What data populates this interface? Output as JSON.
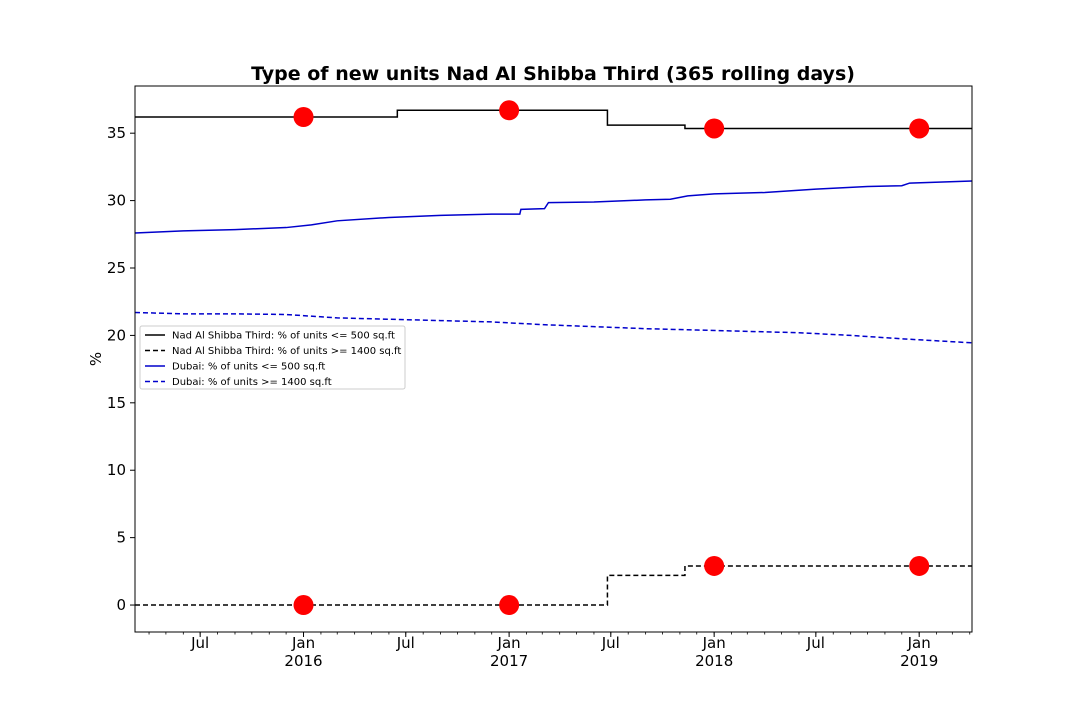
{
  "chart_data": {
    "type": "line",
    "title": "Type of new units Nad Al Shibba Third (365 rolling days)",
    "xlabel": "",
    "ylabel": "%",
    "xlim": [
      "2015-03-07",
      "2019-04-05"
    ],
    "ylim": [
      -2,
      38.5
    ],
    "grid": false,
    "legend_position": "center-left",
    "y_ticks": [
      0,
      5,
      10,
      15,
      20,
      25,
      30,
      35
    ],
    "x_major_ticks": [
      {
        "date": "2015-07-01",
        "label": "Jul",
        "sub": ""
      },
      {
        "date": "2016-01-01",
        "label": "Jan",
        "sub": "2016"
      },
      {
        "date": "2016-07-01",
        "label": "Jul",
        "sub": ""
      },
      {
        "date": "2017-01-01",
        "label": "Jan",
        "sub": "2017"
      },
      {
        "date": "2017-07-01",
        "label": "Jul",
        "sub": ""
      },
      {
        "date": "2018-01-01",
        "label": "Jan",
        "sub": "2018"
      },
      {
        "date": "2018-07-01",
        "label": "Jul",
        "sub": ""
      },
      {
        "date": "2019-01-01",
        "label": "Jan",
        "sub": "2019"
      }
    ],
    "series": [
      {
        "name": "Nad Al Shibba Third: % of units <= 500 sq.ft",
        "color": "#000000",
        "style": "solid",
        "step": true,
        "points": [
          [
            "2015-03-07",
            36.2
          ],
          [
            "2016-06-16",
            36.2
          ],
          [
            "2016-06-16",
            36.7
          ],
          [
            "2017-06-25",
            36.7
          ],
          [
            "2017-06-25",
            35.6
          ],
          [
            "2017-11-10",
            35.6
          ],
          [
            "2017-11-10",
            35.35
          ],
          [
            "2019-04-05",
            35.35
          ]
        ]
      },
      {
        "name": "Nad Al Shibba Third: % of units >= 1400 sq.ft",
        "color": "#000000",
        "style": "dashed",
        "step": true,
        "points": [
          [
            "2015-03-07",
            0
          ],
          [
            "2017-06-25",
            0
          ],
          [
            "2017-06-25",
            2.2
          ],
          [
            "2017-11-10",
            2.2
          ],
          [
            "2017-11-10",
            2.9
          ],
          [
            "2019-04-05",
            2.9
          ]
        ]
      },
      {
        "name": "Dubai: % of units <= 500 sq.ft",
        "color": "#0000cc",
        "style": "solid",
        "step": false,
        "points": [
          [
            "2015-03-07",
            27.6
          ],
          [
            "2015-06-01",
            27.75
          ],
          [
            "2015-09-01",
            27.85
          ],
          [
            "2015-12-01",
            28.0
          ],
          [
            "2016-01-15",
            28.2
          ],
          [
            "2016-03-01",
            28.5
          ],
          [
            "2016-06-01",
            28.75
          ],
          [
            "2016-09-01",
            28.9
          ],
          [
            "2016-12-01",
            29.0
          ],
          [
            "2017-01-20",
            29.0
          ],
          [
            "2017-01-22",
            29.35
          ],
          [
            "2017-03-05",
            29.4
          ],
          [
            "2017-03-12",
            29.85
          ],
          [
            "2017-06-01",
            29.9
          ],
          [
            "2017-09-01",
            30.05
          ],
          [
            "2017-10-15",
            30.1
          ],
          [
            "2017-11-15",
            30.35
          ],
          [
            "2018-01-01",
            30.5
          ],
          [
            "2018-04-01",
            30.6
          ],
          [
            "2018-07-01",
            30.85
          ],
          [
            "2018-10-01",
            31.05
          ],
          [
            "2018-12-01",
            31.1
          ],
          [
            "2018-12-15",
            31.3
          ],
          [
            "2019-04-05",
            31.45
          ]
        ]
      },
      {
        "name": "Dubai: % of units >= 1400 sq.ft",
        "color": "#0000cc",
        "style": "dashed",
        "step": false,
        "points": [
          [
            "2015-03-07",
            21.7
          ],
          [
            "2015-06-01",
            21.6
          ],
          [
            "2015-09-01",
            21.6
          ],
          [
            "2015-12-01",
            21.55
          ],
          [
            "2016-03-01",
            21.3
          ],
          [
            "2016-06-01",
            21.2
          ],
          [
            "2016-09-01",
            21.1
          ],
          [
            "2016-12-01",
            21.0
          ],
          [
            "2017-03-01",
            20.8
          ],
          [
            "2017-06-01",
            20.65
          ],
          [
            "2017-09-01",
            20.5
          ],
          [
            "2017-12-01",
            20.4
          ],
          [
            "2018-03-01",
            20.3
          ],
          [
            "2018-06-01",
            20.2
          ],
          [
            "2018-09-01",
            20.0
          ],
          [
            "2018-12-01",
            19.75
          ],
          [
            "2019-04-05",
            19.45
          ]
        ]
      }
    ],
    "markers": {
      "color": "#ff0000",
      "points": [
        [
          "2016-01-01",
          36.2
        ],
        [
          "2017-01-01",
          36.7
        ],
        [
          "2018-01-01",
          35.35
        ],
        [
          "2019-01-01",
          35.35
        ],
        [
          "2016-01-01",
          0
        ],
        [
          "2017-01-01",
          0
        ],
        [
          "2018-01-01",
          2.9
        ],
        [
          "2019-01-01",
          2.9
        ]
      ]
    }
  }
}
